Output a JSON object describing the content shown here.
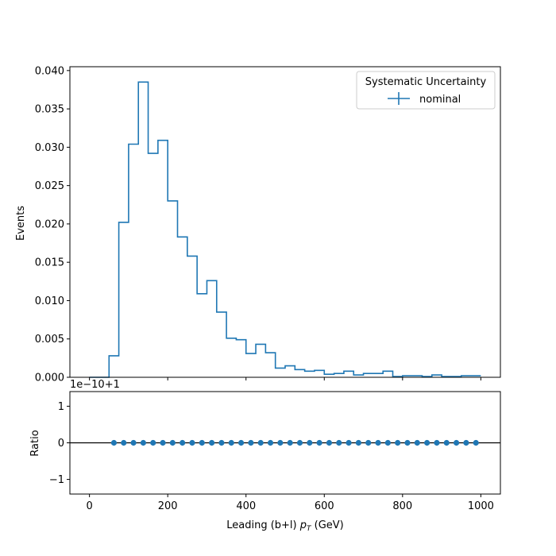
{
  "colors": {
    "series": "#1f77b4",
    "axis": "#000000",
    "legend_border": "#cccccc",
    "background": "#ffffff"
  },
  "chart_data": [
    {
      "type": "step",
      "panel": "top",
      "ylabel": "Events",
      "xlim": [
        -50,
        1050
      ],
      "ylim": [
        0,
        0.0405
      ],
      "xticks": [
        0,
        200,
        400,
        600,
        800,
        1000
      ],
      "yticks": [
        0.0,
        0.005,
        0.01,
        0.015,
        0.02,
        0.025,
        0.03,
        0.035,
        0.04
      ],
      "ytick_labels": [
        "0.000",
        "0.005",
        "0.010",
        "0.015",
        "0.020",
        "0.025",
        "0.030",
        "0.035",
        "0.040"
      ],
      "legend": {
        "title": "Systematic Uncertainty",
        "entries": [
          "nominal"
        ],
        "placement": "top-right"
      },
      "series": [
        {
          "name": "nominal",
          "bin_edges": [
            0,
            25,
            50,
            75,
            100,
            125,
            150,
            175,
            200,
            225,
            250,
            275,
            300,
            325,
            350,
            375,
            400,
            425,
            450,
            475,
            500,
            525,
            550,
            575,
            600,
            625,
            650,
            675,
            700,
            725,
            750,
            775,
            800,
            825,
            850,
            875,
            900,
            925,
            950,
            975,
            1000
          ],
          "values": [
            0.0,
            0.0,
            0.0028,
            0.0202,
            0.0304,
            0.0385,
            0.0292,
            0.0309,
            0.023,
            0.0183,
            0.0158,
            0.0109,
            0.0126,
            0.0085,
            0.0051,
            0.0049,
            0.0031,
            0.0043,
            0.0032,
            0.0012,
            0.0015,
            0.001,
            0.0008,
            0.0009,
            0.0004,
            0.0005,
            0.0008,
            0.0003,
            0.0005,
            0.0005,
            0.0008,
            0.0001,
            0.0002,
            0.0002,
            0.0001,
            0.0003,
            0.0001,
            0.0001,
            0.0002,
            0.0002
          ]
        }
      ]
    },
    {
      "type": "scatter",
      "panel": "bottom",
      "ylabel": "Ratio",
      "xlabel": "Leading (b+l) p_T (GeV)",
      "offset_text": "1e−10+1",
      "xlim": [
        -50,
        1050
      ],
      "ylim": [
        -1.4,
        1.4
      ],
      "xticks": [
        0,
        200,
        400,
        600,
        800,
        1000
      ],
      "xtick_labels": [
        "0",
        "200",
        "400",
        "600",
        "800",
        "1000"
      ],
      "yticks": [
        -1,
        0,
        1
      ],
      "ytick_labels": [
        "−1",
        "0",
        "1"
      ],
      "reference_line": 0,
      "series": [
        {
          "x": [
            62.5,
            87.5,
            112.5,
            137.5,
            162.5,
            187.5,
            212.5,
            237.5,
            262.5,
            287.5,
            312.5,
            337.5,
            362.5,
            387.5,
            412.5,
            437.5,
            462.5,
            487.5,
            512.5,
            537.5,
            562.5,
            587.5,
            612.5,
            637.5,
            662.5,
            687.5,
            712.5,
            737.5,
            762.5,
            787.5,
            812.5,
            837.5,
            862.5,
            887.5,
            912.5,
            937.5,
            962.5,
            987.5
          ],
          "y": [
            0,
            0,
            0,
            0,
            0,
            0,
            0,
            0,
            0,
            0,
            0,
            0,
            0,
            0,
            0,
            0,
            0,
            0,
            0,
            0,
            0,
            0,
            0,
            0,
            0,
            0,
            0,
            0,
            0,
            0,
            0,
            0,
            0,
            0,
            0,
            0,
            0,
            0
          ]
        }
      ]
    }
  ]
}
